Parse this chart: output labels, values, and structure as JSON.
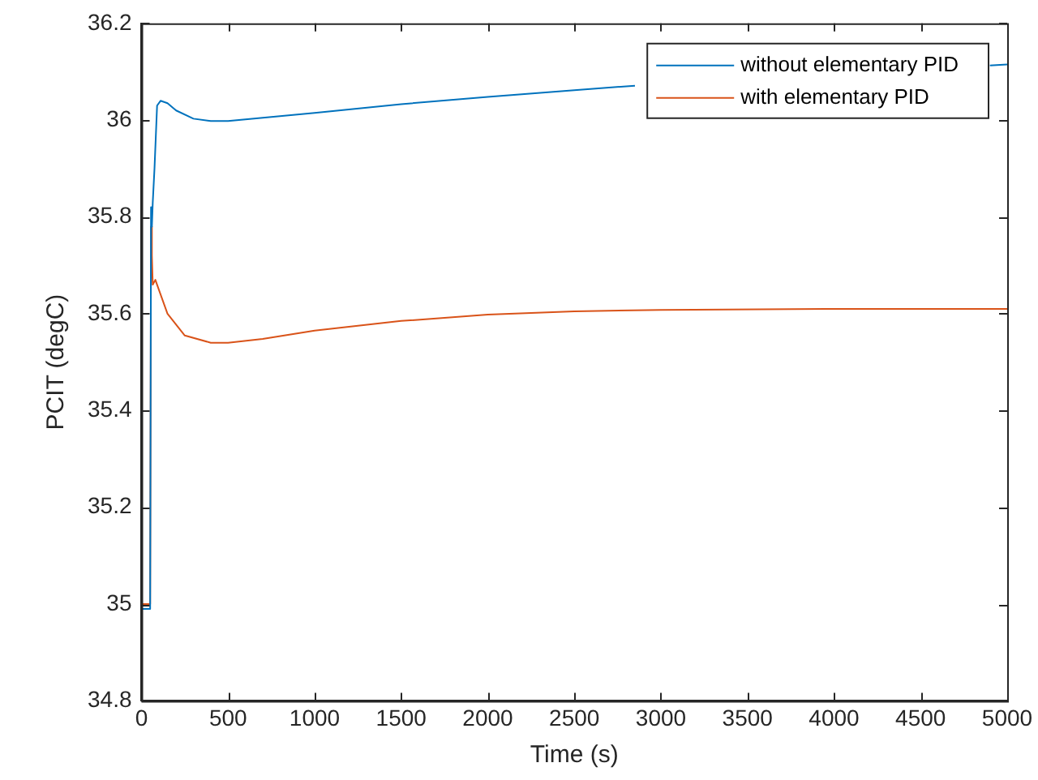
{
  "chart_data": {
    "type": "line",
    "xlabel": "Time (s)",
    "ylabel": "PCIT (degC)",
    "xlim": [
      0,
      5000
    ],
    "xticks": [
      0,
      500,
      1000,
      1500,
      2000,
      2500,
      3000,
      3500,
      4000,
      4500,
      5000
    ],
    "ylim": [
      34.8,
      36.2
    ],
    "yticks": [
      34.8,
      35,
      35.2,
      35.4,
      35.6,
      35.8,
      36,
      36.2
    ],
    "grid": false,
    "legend": "top right",
    "marker": "none",
    "line_style": "solid",
    "series": [
      {
        "name": "without elementary PID",
        "color": "#0072bd",
        "x": [
          0,
          50,
          55,
          60,
          65,
          75,
          90,
          110,
          150,
          200,
          300,
          400,
          500,
          700,
          1000,
          1500,
          2000,
          2500,
          2800,
          2850,
          2860,
          4890,
          4900,
          5000
        ],
        "values": [
          34.99,
          34.99,
          35.82,
          35.78,
          35.83,
          35.9,
          36.03,
          36.04,
          36.035,
          36.02,
          36.003,
          35.998,
          35.998,
          36.005,
          36.015,
          36.033,
          36.048,
          36.062,
          36.07,
          36.071,
          null,
          null,
          36.113,
          36.115
        ]
      },
      {
        "name": "with elementary PID",
        "color": "#d95319",
        "x": [
          0,
          50,
          55,
          60,
          65,
          80,
          100,
          150,
          250,
          400,
          500,
          700,
          1000,
          1500,
          2000,
          2500,
          3000,
          4000,
          5000
        ],
        "values": [
          35.0,
          35.0,
          35.78,
          35.72,
          35.66,
          35.67,
          35.65,
          35.6,
          35.555,
          35.54,
          35.54,
          35.548,
          35.565,
          35.585,
          35.598,
          35.605,
          35.608,
          35.61,
          35.61
        ]
      }
    ]
  }
}
